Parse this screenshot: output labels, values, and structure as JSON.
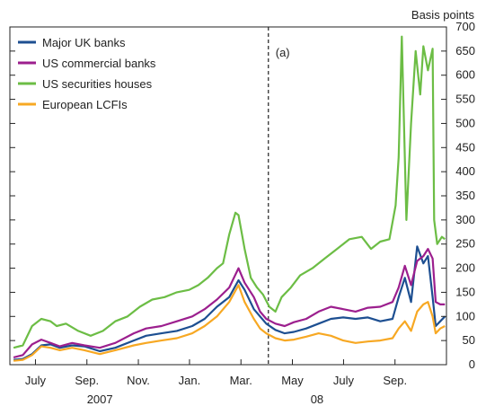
{
  "chart_data": {
    "type": "line",
    "ylabel": "Basis points",
    "ylim": [
      0,
      700
    ],
    "yticks": [
      0,
      50,
      100,
      150,
      200,
      250,
      300,
      350,
      400,
      450,
      500,
      550,
      600,
      650,
      700
    ],
    "x_range": [
      2007.458,
      2008.875
    ],
    "x_ticks": [
      {
        "label": "July",
        "x": 2007.541
      },
      {
        "label": "Sep.",
        "x": 2007.708
      },
      {
        "label": "Nov.",
        "x": 2007.875
      },
      {
        "label": "Jan.",
        "x": 2008.041
      },
      {
        "label": "Mar.",
        "x": 2008.208
      },
      {
        "label": "May",
        "x": 2008.375
      },
      {
        "label": "July",
        "x": 2008.541
      },
      {
        "label": "Sep.",
        "x": 2008.708
      }
    ],
    "year_labels": [
      {
        "label": "2007",
        "x": 2007.75
      },
      {
        "label": "08",
        "x": 2008.455
      }
    ],
    "annotation": {
      "label": "(a)",
      "x": 2008.297
    },
    "series": [
      {
        "name": "Major UK banks",
        "color": "#1d4f91",
        "points": [
          [
            2007.47,
            10
          ],
          [
            2007.5,
            12
          ],
          [
            2007.53,
            22
          ],
          [
            2007.56,
            40
          ],
          [
            2007.59,
            42
          ],
          [
            2007.62,
            35
          ],
          [
            2007.66,
            40
          ],
          [
            2007.7,
            38
          ],
          [
            2007.75,
            28
          ],
          [
            2007.8,
            35
          ],
          [
            2007.86,
            50
          ],
          [
            2007.9,
            60
          ],
          [
            2007.95,
            65
          ],
          [
            2008.0,
            70
          ],
          [
            2008.05,
            80
          ],
          [
            2008.09,
            95
          ],
          [
            2008.13,
            120
          ],
          [
            2008.17,
            140
          ],
          [
            2008.2,
            175
          ],
          [
            2008.22,
            155
          ],
          [
            2008.25,
            115
          ],
          [
            2008.27,
            100
          ],
          [
            2008.29,
            85
          ],
          [
            2008.32,
            72
          ],
          [
            2008.35,
            65
          ],
          [
            2008.38,
            68
          ],
          [
            2008.42,
            75
          ],
          [
            2008.46,
            85
          ],
          [
            2008.5,
            95
          ],
          [
            2008.54,
            98
          ],
          [
            2008.58,
            95
          ],
          [
            2008.62,
            98
          ],
          [
            2008.66,
            90
          ],
          [
            2008.7,
            95
          ],
          [
            2008.72,
            140
          ],
          [
            2008.74,
            180
          ],
          [
            2008.76,
            130
          ],
          [
            2008.78,
            245
          ],
          [
            2008.8,
            210
          ],
          [
            2008.815,
            225
          ],
          [
            2008.83,
            140
          ],
          [
            2008.84,
            80
          ],
          [
            2008.855,
            90
          ],
          [
            2008.87,
            100
          ]
        ]
      },
      {
        "name": "US commercial banks",
        "color": "#9c1f8e",
        "points": [
          [
            2007.47,
            15
          ],
          [
            2007.5,
            20
          ],
          [
            2007.53,
            42
          ],
          [
            2007.56,
            52
          ],
          [
            2007.59,
            45
          ],
          [
            2007.62,
            38
          ],
          [
            2007.66,
            45
          ],
          [
            2007.7,
            40
          ],
          [
            2007.75,
            35
          ],
          [
            2007.8,
            45
          ],
          [
            2007.86,
            65
          ],
          [
            2007.9,
            75
          ],
          [
            2007.95,
            80
          ],
          [
            2008.0,
            90
          ],
          [
            2008.05,
            100
          ],
          [
            2008.09,
            115
          ],
          [
            2008.13,
            135
          ],
          [
            2008.17,
            160
          ],
          [
            2008.2,
            200
          ],
          [
            2008.22,
            170
          ],
          [
            2008.25,
            140
          ],
          [
            2008.27,
            110
          ],
          [
            2008.29,
            95
          ],
          [
            2008.32,
            85
          ],
          [
            2008.35,
            80
          ],
          [
            2008.38,
            88
          ],
          [
            2008.42,
            95
          ],
          [
            2008.46,
            110
          ],
          [
            2008.5,
            120
          ],
          [
            2008.54,
            115
          ],
          [
            2008.58,
            110
          ],
          [
            2008.62,
            118
          ],
          [
            2008.66,
            120
          ],
          [
            2008.7,
            130
          ],
          [
            2008.72,
            160
          ],
          [
            2008.74,
            205
          ],
          [
            2008.76,
            165
          ],
          [
            2008.78,
            215
          ],
          [
            2008.8,
            225
          ],
          [
            2008.815,
            240
          ],
          [
            2008.83,
            220
          ],
          [
            2008.84,
            130
          ],
          [
            2008.855,
            125
          ],
          [
            2008.87,
            125
          ]
        ]
      },
      {
        "name": "US securities houses",
        "color": "#6cbd45",
        "points": [
          [
            2007.47,
            35
          ],
          [
            2007.5,
            40
          ],
          [
            2007.53,
            80
          ],
          [
            2007.56,
            95
          ],
          [
            2007.59,
            90
          ],
          [
            2007.61,
            80
          ],
          [
            2007.64,
            85
          ],
          [
            2007.68,
            70
          ],
          [
            2007.72,
            60
          ],
          [
            2007.76,
            70
          ],
          [
            2007.8,
            90
          ],
          [
            2007.84,
            100
          ],
          [
            2007.88,
            120
          ],
          [
            2007.92,
            135
          ],
          [
            2007.96,
            140
          ],
          [
            2008.0,
            150
          ],
          [
            2008.04,
            155
          ],
          [
            2008.07,
            165
          ],
          [
            2008.1,
            180
          ],
          [
            2008.13,
            200
          ],
          [
            2008.15,
            210
          ],
          [
            2008.17,
            270
          ],
          [
            2008.19,
            315
          ],
          [
            2008.2,
            310
          ],
          [
            2008.22,
            240
          ],
          [
            2008.24,
            180
          ],
          [
            2008.26,
            160
          ],
          [
            2008.28,
            145
          ],
          [
            2008.3,
            120
          ],
          [
            2008.32,
            110
          ],
          [
            2008.34,
            140
          ],
          [
            2008.37,
            160
          ],
          [
            2008.4,
            185
          ],
          [
            2008.44,
            200
          ],
          [
            2008.48,
            220
          ],
          [
            2008.52,
            240
          ],
          [
            2008.56,
            260
          ],
          [
            2008.6,
            265
          ],
          [
            2008.63,
            240
          ],
          [
            2008.66,
            255
          ],
          [
            2008.69,
            260
          ],
          [
            2008.71,
            330
          ],
          [
            2008.72,
            430
          ],
          [
            2008.73,
            680
          ],
          [
            2008.745,
            300
          ],
          [
            2008.76,
            500
          ],
          [
            2008.775,
            650
          ],
          [
            2008.79,
            560
          ],
          [
            2008.8,
            660
          ],
          [
            2008.815,
            610
          ],
          [
            2008.83,
            655
          ],
          [
            2008.835,
            300
          ],
          [
            2008.845,
            250
          ],
          [
            2008.86,
            265
          ],
          [
            2008.87,
            260
          ]
        ]
      },
      {
        "name": "European LCFIs",
        "color": "#f7a823",
        "points": [
          [
            2007.47,
            8
          ],
          [
            2007.5,
            10
          ],
          [
            2007.53,
            20
          ],
          [
            2007.56,
            38
          ],
          [
            2007.59,
            35
          ],
          [
            2007.62,
            30
          ],
          [
            2007.66,
            35
          ],
          [
            2007.7,
            30
          ],
          [
            2007.75,
            22
          ],
          [
            2007.8,
            30
          ],
          [
            2007.86,
            40
          ],
          [
            2007.9,
            45
          ],
          [
            2007.95,
            50
          ],
          [
            2008.0,
            55
          ],
          [
            2008.05,
            65
          ],
          [
            2008.09,
            80
          ],
          [
            2008.13,
            100
          ],
          [
            2008.17,
            130
          ],
          [
            2008.2,
            165
          ],
          [
            2008.22,
            130
          ],
          [
            2008.25,
            95
          ],
          [
            2008.27,
            75
          ],
          [
            2008.29,
            65
          ],
          [
            2008.32,
            55
          ],
          [
            2008.35,
            50
          ],
          [
            2008.38,
            52
          ],
          [
            2008.42,
            58
          ],
          [
            2008.46,
            65
          ],
          [
            2008.5,
            60
          ],
          [
            2008.54,
            50
          ],
          [
            2008.58,
            45
          ],
          [
            2008.62,
            48
          ],
          [
            2008.66,
            50
          ],
          [
            2008.7,
            55
          ],
          [
            2008.72,
            75
          ],
          [
            2008.74,
            90
          ],
          [
            2008.76,
            70
          ],
          [
            2008.78,
            110
          ],
          [
            2008.8,
            125
          ],
          [
            2008.815,
            130
          ],
          [
            2008.83,
            100
          ],
          [
            2008.84,
            65
          ],
          [
            2008.855,
            75
          ],
          [
            2008.87,
            80
          ]
        ]
      }
    ]
  }
}
